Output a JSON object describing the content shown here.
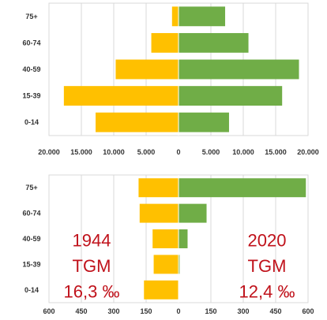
{
  "chart_data": [
    {
      "type": "bar",
      "title": "",
      "xlabel": "",
      "ylabel": "",
      "categories": [
        "75+",
        "60-74",
        "40-59",
        "15-39",
        "0-14"
      ],
      "series": [
        {
          "side": "left",
          "color": "#ffc000",
          "values": [
            1000,
            4200,
            9700,
            17700,
            12800
          ]
        },
        {
          "side": "right",
          "color": "#70ad47",
          "values": [
            7200,
            10800,
            18600,
            16000,
            7800
          ]
        }
      ],
      "xlim": [
        -20000,
        20000
      ],
      "ticks": [
        -20000,
        -15000,
        -10000,
        -5000,
        0,
        5000,
        10000,
        15000,
        20000
      ],
      "tick_labels": [
        "20.000",
        "15.000",
        "10.000",
        "5.000",
        "0",
        "5.000",
        "10.000",
        "15.000",
        "20.000"
      ],
      "grid": true
    },
    {
      "type": "bar",
      "title": "",
      "xlabel": "",
      "ylabel": "",
      "categories": [
        "75+",
        "60-74",
        "40-59",
        "15-39",
        "0-14"
      ],
      "series": [
        {
          "side": "left",
          "color": "#ffc000",
          "values": [
            185,
            180,
            120,
            115,
            160
          ]
        },
        {
          "side": "right",
          "color": "#70ad47",
          "values": [
            590,
            130,
            42,
            5,
            0
          ]
        }
      ],
      "xlim": [
        -600,
        600
      ],
      "ticks": [
        -600,
        -450,
        -300,
        -150,
        0,
        150,
        300,
        450,
        600
      ],
      "tick_labels": [
        "600",
        "450",
        "300",
        "150",
        "0",
        "150",
        "300",
        "450",
        "600"
      ],
      "grid": true,
      "annotations": {
        "left": [
          "1944",
          "TGM",
          "16,3 ‰"
        ],
        "right": [
          "2020",
          "TGM",
          "12,4 ‰"
        ]
      }
    }
  ]
}
